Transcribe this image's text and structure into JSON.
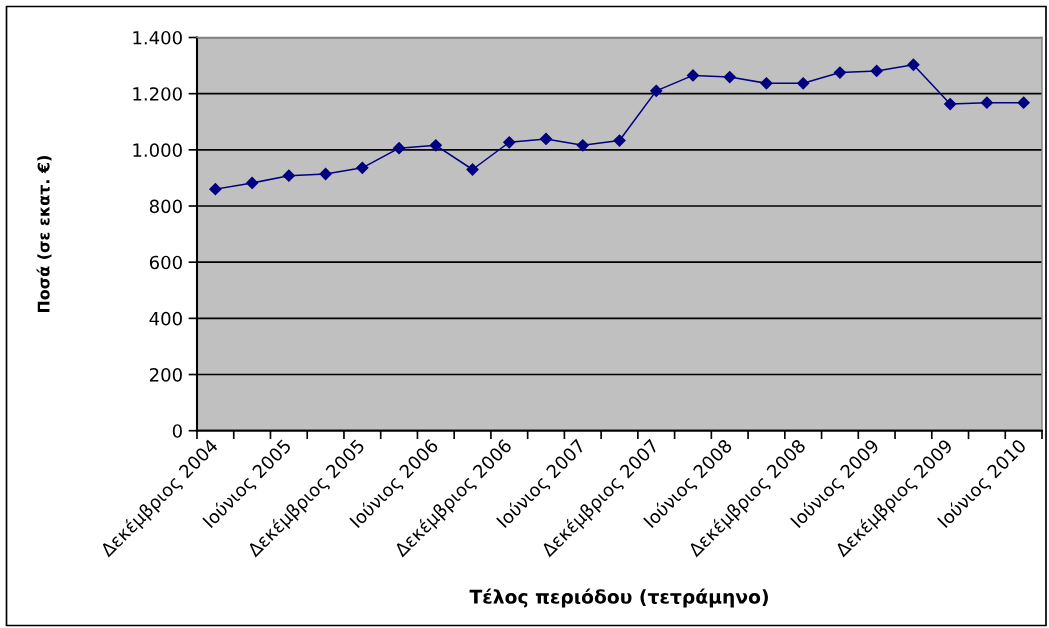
{
  "chart_data": {
    "type": "line",
    "xlabel": "Τέλος περιόδου (τετράμηνο)",
    "ylabel": "Ποσά (σε εκατ. €)",
    "categories": [
      "Δεκέμβριος 2004",
      null,
      "Ιούνιος 2005",
      null,
      "Δεκέμβριος 2005",
      null,
      "Ιούνιος 2006",
      null,
      "Δεκέμβριος 2006",
      null,
      "Ιούνιος 2007",
      null,
      "Δεκέμβριος 2007",
      null,
      "Ιούνιος 2008",
      null,
      "Δεκέμβριος 2008",
      null,
      "Ιούνιος 2009",
      null,
      "Δεκέμβριος 2009",
      null,
      "Ιούνιος 2010"
    ],
    "series": [
      {
        "color": "#000080",
        "values": [
          860,
          882,
          908,
          914,
          936,
          1006,
          1016,
          930,
          1027,
          1039,
          1016,
          1033,
          1210,
          1265,
          1259,
          1237,
          1237,
          1275,
          1281,
          1303,
          1163,
          1168,
          1168
        ]
      }
    ],
    "ylim": [
      0,
      1400
    ],
    "yticks": [
      0,
      200,
      400,
      600,
      800,
      {
        "value": 1000,
        "label": "1.000"
      },
      {
        "value": 1200,
        "label": "1.200"
      },
      {
        "value": 1400,
        "label": "1.400"
      }
    ],
    "grid": "y",
    "marker": "diamond",
    "line_style": "solid"
  }
}
